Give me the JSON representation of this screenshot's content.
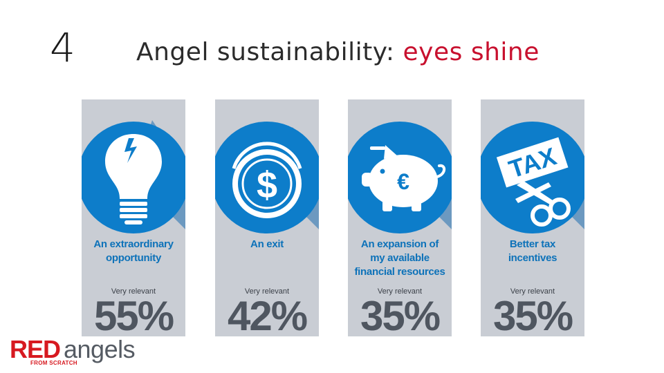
{
  "slide": {
    "number": "4",
    "title_main": "Angel sustainability: ",
    "title_accent": "eyes shine"
  },
  "colors": {
    "accent_red": "#c8102e",
    "card_bg": "#c9cdd4",
    "circle_blue": "#0d7dca",
    "label_blue": "#0d72b9",
    "percent_gray": "#4f5660"
  },
  "cards": [
    {
      "icon": "lightbulb-icon",
      "label_lines": [
        "An extraordinary",
        "opportunity"
      ],
      "relevance": "Very relevant",
      "percent": "55%"
    },
    {
      "icon": "dollar-coin-icon",
      "label_lines": [
        "An exit"
      ],
      "relevance": "Very relevant",
      "percent": "42%"
    },
    {
      "icon": "piggy-bank-euro-icon",
      "label_lines": [
        "An expansion of",
        "my available",
        "financial resources"
      ],
      "relevance": "Very relevant",
      "percent": "35%"
    },
    {
      "icon": "tax-scissors-icon",
      "label_lines": [
        "Better tax",
        "incentives"
      ],
      "relevance": "Very relevant",
      "percent": "35%"
    }
  ],
  "icon_text": {
    "dollar": "$",
    "euro": "€",
    "tax": "TAX"
  },
  "logo": {
    "red": "RED",
    "angels": "angels",
    "tagline": "FROM SCRATCH"
  }
}
